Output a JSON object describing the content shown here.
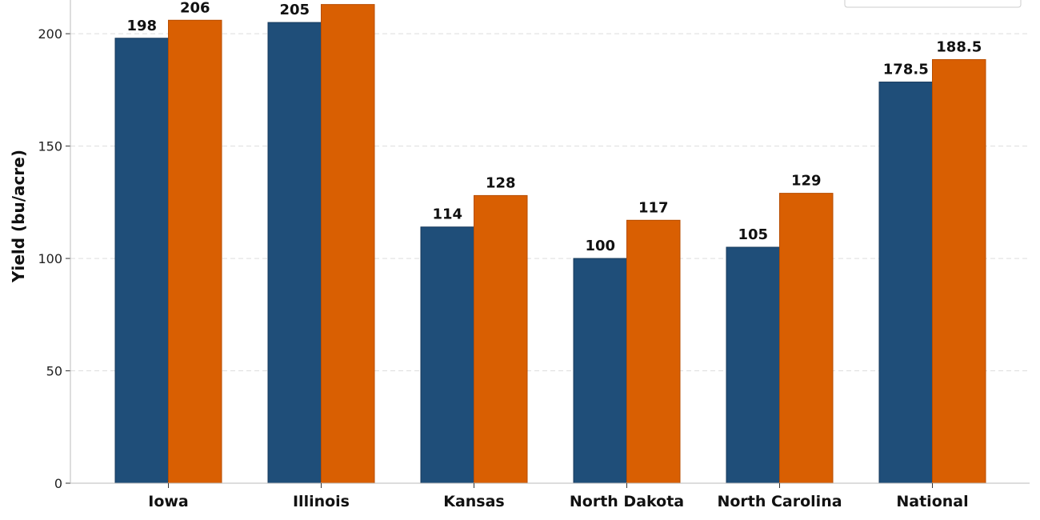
{
  "chart_data": {
    "type": "bar",
    "title": "",
    "xlabel": "",
    "ylabel": "Yield (bu/acre)",
    "ylim": [
      0,
      215
    ],
    "yticks": [
      0,
      50,
      100,
      150,
      200
    ],
    "grid": "y-dashed",
    "legend_placement": "top-right",
    "categories": [
      "Iowa",
      "Illinois",
      "Kansas",
      "North Dakota",
      "North Carolina",
      "National"
    ],
    "series": [
      {
        "color": "#1f4e79",
        "values": [
          198,
          205,
          114,
          100,
          105,
          178.5
        ],
        "labels": [
          "198",
          "205",
          "114",
          "100",
          "105",
          "178.5"
        ]
      },
      {
        "color": "#d95f02",
        "values": [
          206,
          213,
          128,
          117,
          129,
          188.5
        ],
        "labels": [
          "206",
          "",
          "128",
          "117",
          "129",
          "188.5"
        ]
      }
    ]
  }
}
